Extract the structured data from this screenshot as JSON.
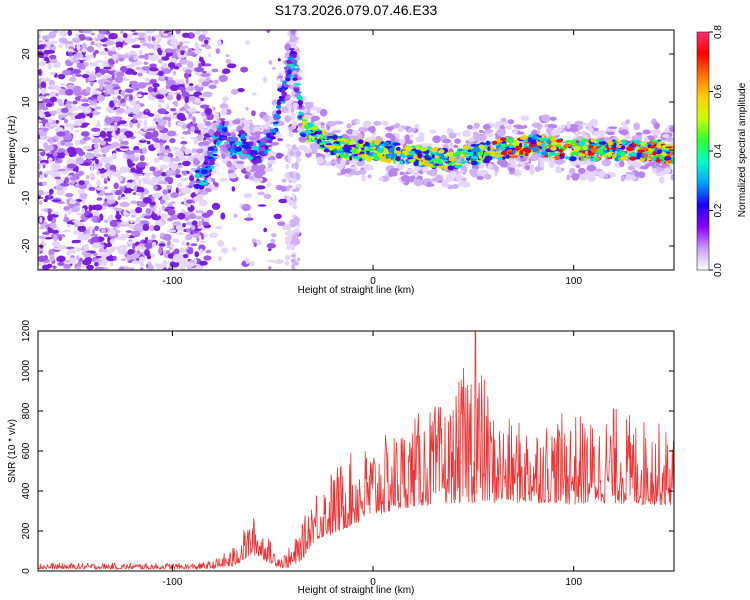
{
  "title": "S173.2026.079.07.46.E33",
  "chart_data": [
    {
      "type": "heatmap",
      "xlabel": "Height of straight line (km)",
      "ylabel": "Frequency (Hz)",
      "xlim": [
        -167,
        150
      ],
      "ylim": [
        -25,
        25
      ],
      "xticks": [
        -100,
        0,
        100
      ],
      "xtick_labels": [
        "-100",
        "0",
        "100"
      ],
      "yticks": [
        -20,
        -10,
        0,
        10,
        20
      ],
      "ytick_labels": [
        "-20",
        "-10",
        "0",
        "10",
        "20"
      ],
      "signal_track": {
        "description": "narrow band near 0 Hz from about -40 km to 150 km",
        "x": [
          -85,
          -80,
          -75,
          -70,
          -65,
          -60,
          -55,
          -50,
          -45,
          -40,
          -35,
          -30,
          -20,
          -10,
          0,
          20,
          40,
          60,
          80,
          100,
          120,
          140,
          150
        ],
        "freq": [
          -6,
          -1,
          5,
          0,
          2,
          -1,
          0,
          3,
          12,
          20,
          5,
          3,
          1,
          0,
          0,
          -1,
          -2,
          0,
          1,
          0,
          0,
          0,
          -1
        ]
      },
      "colorbar": {
        "label": "Normalized spectral amplitude",
        "range": [
          0,
          0.8
        ],
        "ticks": [
          0.0,
          0.2,
          0.4,
          0.6,
          0.8
        ],
        "tick_labels": [
          "0.0",
          "0.2",
          "0.4",
          "0.6",
          "0.8"
        ],
        "colors": [
          "#ffffff",
          "#c89bff",
          "#8a00ff",
          "#1a00ff",
          "#00a0ff",
          "#00ffc8",
          "#30ff30",
          "#c8ff00",
          "#ffd000",
          "#ff7000",
          "#ff0000",
          "#ff3070"
        ]
      }
    },
    {
      "type": "line",
      "xlabel": "Height of straight line (km)",
      "ylabel": "SNR (10 * v/v)",
      "xlim": [
        -167,
        150
      ],
      "ylim": [
        0,
        1200
      ],
      "xticks": [
        -100,
        0,
        100
      ],
      "xtick_labels": [
        "-100",
        "0",
        "100"
      ],
      "yticks": [
        0,
        200,
        400,
        600,
        800,
        1000,
        1200
      ],
      "ytick_labels": [
        "0",
        "200",
        "400",
        "600",
        "800",
        "1000",
        "1200"
      ],
      "color": "#ee3333",
      "envelope": {
        "x": [
          -167,
          -90,
          -80,
          -70,
          -60,
          -55,
          -50,
          -45,
          -40,
          -35,
          -30,
          -25,
          -20,
          -10,
          0,
          10,
          20,
          30,
          40,
          50,
          60,
          70,
          80,
          90,
          100,
          110,
          120,
          130,
          140,
          150
        ],
        "baseline": [
          10,
          10,
          12,
          20,
          80,
          60,
          30,
          15,
          20,
          60,
          140,
          170,
          180,
          230,
          270,
          300,
          320,
          330,
          340,
          340,
          340,
          340,
          340,
          340,
          330,
          340,
          340,
          330,
          330,
          330
        ],
        "peak": [
          40,
          40,
          50,
          120,
          280,
          220,
          130,
          80,
          140,
          240,
          420,
          450,
          520,
          600,
          650,
          700,
          780,
          830,
          850,
          1200,
          800,
          750,
          760,
          780,
          800,
          760,
          830,
          780,
          760,
          700
        ]
      }
    }
  ]
}
